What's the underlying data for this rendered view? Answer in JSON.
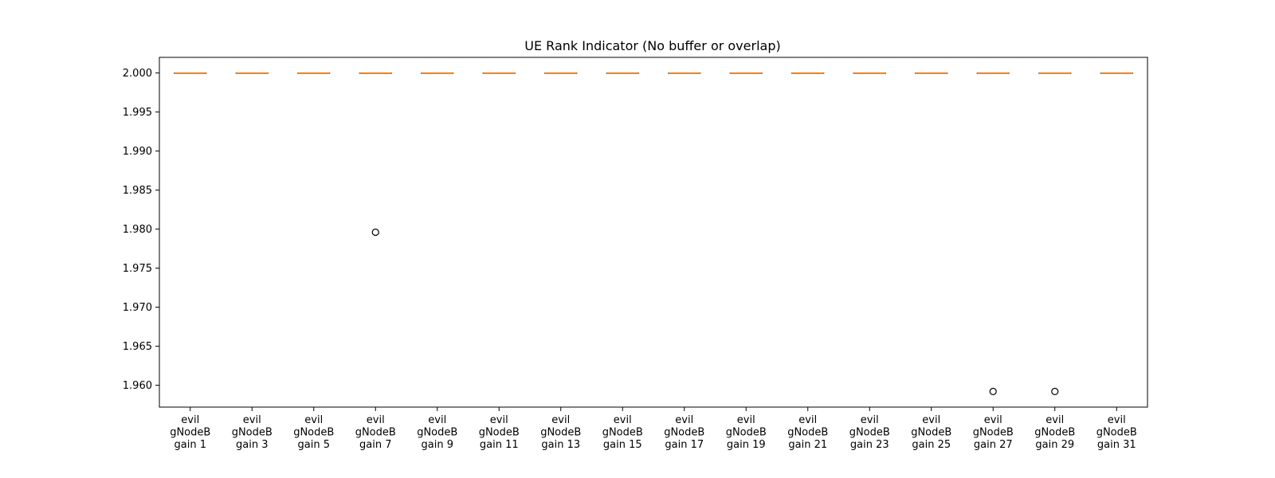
{
  "chart_data": {
    "type": "boxplot",
    "title": "UE Rank Indicator (No buffer or overlap)",
    "xlabel": "",
    "ylabel": "",
    "ylim": [
      1.9572,
      2.002
    ],
    "y_ticks": [
      1.96,
      1.965,
      1.97,
      1.975,
      1.98,
      1.985,
      1.99,
      1.995,
      2.0
    ],
    "y_tick_labels": [
      "1.960",
      "1.965",
      "1.970",
      "1.975",
      "1.980",
      "1.985",
      "1.990",
      "1.995",
      "2.000"
    ],
    "grid": false,
    "categories": [
      [
        "evil",
        "gNodeB",
        "gain 1"
      ],
      [
        "evil",
        "gNodeB",
        "gain 3"
      ],
      [
        "evil",
        "gNodeB",
        "gain 5"
      ],
      [
        "evil",
        "gNodeB",
        "gain 7"
      ],
      [
        "evil",
        "gNodeB",
        "gain 9"
      ],
      [
        "evil",
        "gNodeB",
        "gain 11"
      ],
      [
        "evil",
        "gNodeB",
        "gain 13"
      ],
      [
        "evil",
        "gNodeB",
        "gain 15"
      ],
      [
        "evil",
        "gNodeB",
        "gain 17"
      ],
      [
        "evil",
        "gNodeB",
        "gain 19"
      ],
      [
        "evil",
        "gNodeB",
        "gain 21"
      ],
      [
        "evil",
        "gNodeB",
        "gain 23"
      ],
      [
        "evil",
        "gNodeB",
        "gain 25"
      ],
      [
        "evil",
        "gNodeB",
        "gain 27"
      ],
      [
        "evil",
        "gNodeB",
        "gain 29"
      ],
      [
        "evil",
        "gNodeB",
        "gain 31"
      ]
    ],
    "boxes": [
      {
        "q1": 2.0,
        "median": 2.0,
        "q3": 2.0,
        "whisker_low": 2.0,
        "whisker_high": 2.0,
        "outliers": []
      },
      {
        "q1": 2.0,
        "median": 2.0,
        "q3": 2.0,
        "whisker_low": 2.0,
        "whisker_high": 2.0,
        "outliers": []
      },
      {
        "q1": 2.0,
        "median": 2.0,
        "q3": 2.0,
        "whisker_low": 2.0,
        "whisker_high": 2.0,
        "outliers": []
      },
      {
        "q1": 2.0,
        "median": 2.0,
        "q3": 2.0,
        "whisker_low": 2.0,
        "whisker_high": 2.0,
        "outliers": [
          1.9796
        ]
      },
      {
        "q1": 2.0,
        "median": 2.0,
        "q3": 2.0,
        "whisker_low": 2.0,
        "whisker_high": 2.0,
        "outliers": []
      },
      {
        "q1": 2.0,
        "median": 2.0,
        "q3": 2.0,
        "whisker_low": 2.0,
        "whisker_high": 2.0,
        "outliers": []
      },
      {
        "q1": 2.0,
        "median": 2.0,
        "q3": 2.0,
        "whisker_low": 2.0,
        "whisker_high": 2.0,
        "outliers": []
      },
      {
        "q1": 2.0,
        "median": 2.0,
        "q3": 2.0,
        "whisker_low": 2.0,
        "whisker_high": 2.0,
        "outliers": []
      },
      {
        "q1": 2.0,
        "median": 2.0,
        "q3": 2.0,
        "whisker_low": 2.0,
        "whisker_high": 2.0,
        "outliers": []
      },
      {
        "q1": 2.0,
        "median": 2.0,
        "q3": 2.0,
        "whisker_low": 2.0,
        "whisker_high": 2.0,
        "outliers": []
      },
      {
        "q1": 2.0,
        "median": 2.0,
        "q3": 2.0,
        "whisker_low": 2.0,
        "whisker_high": 2.0,
        "outliers": []
      },
      {
        "q1": 2.0,
        "median": 2.0,
        "q3": 2.0,
        "whisker_low": 2.0,
        "whisker_high": 2.0,
        "outliers": []
      },
      {
        "q1": 2.0,
        "median": 2.0,
        "q3": 2.0,
        "whisker_low": 2.0,
        "whisker_high": 2.0,
        "outliers": []
      },
      {
        "q1": 2.0,
        "median": 2.0,
        "q3": 2.0,
        "whisker_low": 2.0,
        "whisker_high": 2.0,
        "outliers": [
          1.9592
        ]
      },
      {
        "q1": 2.0,
        "median": 2.0,
        "q3": 2.0,
        "whisker_low": 2.0,
        "whisker_high": 2.0,
        "outliers": [
          1.9592
        ]
      },
      {
        "q1": 2.0,
        "median": 2.0,
        "q3": 2.0,
        "whisker_low": 2.0,
        "whisker_high": 2.0,
        "outliers": []
      }
    ],
    "colors": {
      "box": "#000000",
      "median": "#ff7f0e",
      "outlier_edge": "#000000",
      "outlier_fill": "#ffffff",
      "axes": "#000000"
    }
  }
}
